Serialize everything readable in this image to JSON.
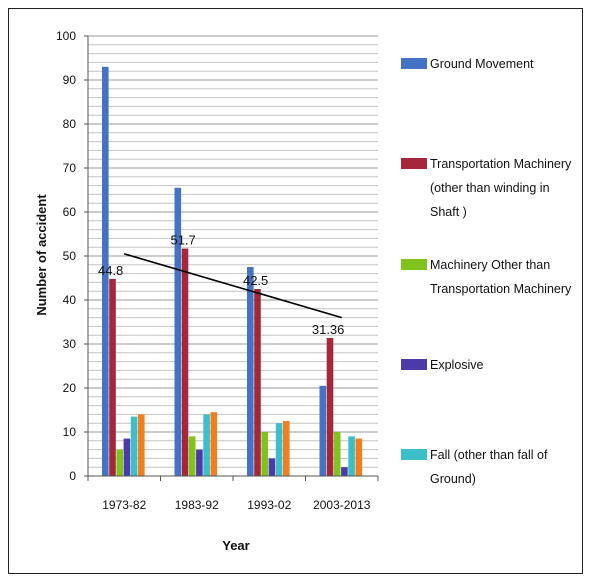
{
  "chart_data": {
    "type": "bar",
    "categories": [
      "1973-82",
      "1983-92",
      "1993-02",
      "2003-2013"
    ],
    "series": [
      {
        "name": "Ground Movement",
        "color": "#4472c4",
        "values": [
          93,
          65.5,
          47.5,
          20.5
        ]
      },
      {
        "name": "Transportation Machinery (other than winding in Shaft )",
        "color": "#a5283a",
        "values": [
          44.8,
          51.7,
          42.5,
          31.36
        ]
      },
      {
        "name": "Machinery Other than Transportation Machinery",
        "color": "#7fc31c",
        "values": [
          6,
          9,
          10,
          10
        ]
      },
      {
        "name": "Explosive",
        "color": "#4b3aa8",
        "values": [
          8.5,
          6,
          4,
          2
        ]
      },
      {
        "name": "Fall (other than fall of Ground)",
        "color": "#3dbfc9",
        "values": [
          13.5,
          14,
          12,
          9
        ]
      },
      {
        "name": "",
        "color": "#f07f1f",
        "values": [
          14,
          14.5,
          12.5,
          8.5
        ]
      }
    ],
    "trendline": {
      "values": [
        50.5,
        46,
        40.5,
        36
      ],
      "color": "#000000"
    },
    "annotations": [
      {
        "category_index": 0,
        "value": 44.8,
        "text": "44.8"
      },
      {
        "category_index": 1,
        "value": 51.7,
        "text": "51.7"
      },
      {
        "category_index": 2,
        "value": 42.5,
        "text": "42.5"
      },
      {
        "category_index": 3,
        "value": 31.36,
        "text": "31.36"
      }
    ],
    "xlabel": "Year",
    "ylabel": "Number of accident",
    "ylim": [
      0,
      100
    ],
    "yticks": [
      0,
      10,
      20,
      30,
      40,
      50,
      60,
      70,
      80,
      90,
      100
    ],
    "grid": true,
    "legend_position": "right",
    "legend_entries": [
      "Ground Movement",
      "Transportation Machinery (other than winding in Shaft )",
      "Machinery Other than Transportation Machinery",
      "Explosive",
      "Fall (other than fall of Ground)"
    ]
  }
}
